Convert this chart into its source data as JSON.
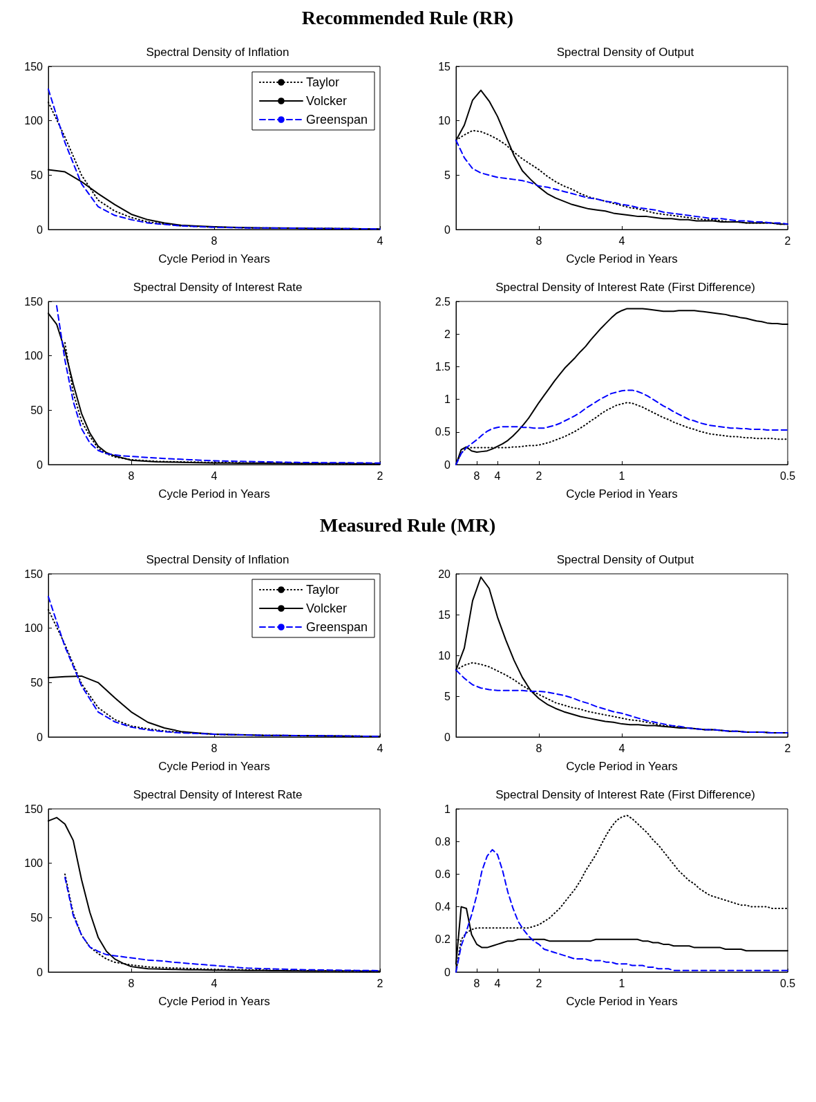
{
  "chart_data": [
    {
      "type": "line",
      "title": "Spectral Density of Inflation",
      "xlabel": "Cycle Period in Years",
      "annotations": [
        "Recommended Rule (RR)"
      ],
      "legend": "top right",
      "categories": [
        null,
        null,
        null,
        null,
        null,
        null,
        null,
        null,
        null,
        null,
        "8",
        null,
        null,
        null,
        null,
        null,
        null,
        null,
        null,
        null,
        "4"
      ],
      "ylim": [
        0,
        150
      ],
      "yticks": [
        0,
        50,
        100,
        150
      ],
      "series": [
        {
          "name": "Taylor",
          "color": "#000000",
          "line_style": "dotted",
          "values": [
            117,
            85,
            50,
            27,
            17,
            11,
            7,
            5,
            3.3,
            2.8,
            2.2,
            1.9,
            1.5,
            1.4,
            1.3,
            1.2,
            1,
            0.9,
            0.8,
            0.6,
            0.5
          ]
        },
        {
          "name": "Volcker",
          "color": "#000000",
          "line_style": "solid",
          "values": [
            55,
            53,
            44,
            33,
            23,
            14,
            9,
            6,
            4,
            3.2,
            2.5,
            2.1,
            1.7,
            1.5,
            1.4,
            1.2,
            1,
            0.9,
            0.8,
            0.6,
            0.5
          ]
        },
        {
          "name": "Greenspan",
          "color": "#0000ff",
          "line_style": "dashed",
          "values": [
            129,
            80,
            42,
            21,
            13,
            9,
            6,
            4.7,
            3.3,
            2.7,
            2,
            1.8,
            1.5,
            1.4,
            1.3,
            1.2,
            1,
            0.9,
            0.8,
            0.6,
            0.5
          ]
        }
      ]
    },
    {
      "type": "line",
      "title": "Spectral Density of Output",
      "xlabel": "Cycle Period in Years",
      "categories": [
        null,
        null,
        null,
        null,
        null,
        null,
        null,
        null,
        null,
        null,
        "8",
        null,
        null,
        null,
        null,
        null,
        null,
        null,
        null,
        null,
        "4",
        null,
        null,
        null,
        null,
        null,
        null,
        null,
        null,
        null,
        null,
        null,
        null,
        null,
        null,
        null,
        null,
        null,
        null,
        null,
        "2"
      ],
      "ylim": [
        0,
        15
      ],
      "yticks": [
        0,
        5,
        10,
        15
      ],
      "series": [
        {
          "color": "#000000",
          "line_style": "dotted",
          "values": [
            8.2,
            8.7,
            9.1,
            9.0,
            8.7,
            8.3,
            7.8,
            7.1,
            6.5,
            6.0,
            5.5,
            4.9,
            4.4,
            4.0,
            3.7,
            3.3,
            3.0,
            2.8,
            2.6,
            2.4,
            2.2,
            2.0,
            1.9,
            1.7,
            1.5,
            1.4,
            1.3,
            1.2,
            1.1,
            1.0,
            0.9,
            0.9,
            0.8,
            0.7,
            0.7,
            0.6,
            0.6,
            0.6,
            0.6,
            0.5,
            0.5
          ]
        },
        {
          "color": "#000000",
          "line_style": "solid",
          "values": [
            8.2,
            9.6,
            11.9,
            12.8,
            11.8,
            10.4,
            8.6,
            6.8,
            5.4,
            4.6,
            3.9,
            3.3,
            2.9,
            2.6,
            2.3,
            2.1,
            1.9,
            1.8,
            1.7,
            1.5,
            1.4,
            1.3,
            1.2,
            1.2,
            1.1,
            1.0,
            1.0,
            0.9,
            0.9,
            0.8,
            0.8,
            0.8,
            0.7,
            0.7,
            0.7,
            0.6,
            0.6,
            0.6,
            0.6,
            0.5,
            0.5
          ]
        },
        {
          "color": "#0000ff",
          "line_style": "dashed",
          "values": [
            8.2,
            6.6,
            5.6,
            5.2,
            5.0,
            4.8,
            4.7,
            4.6,
            4.5,
            4.3,
            4.0,
            3.9,
            3.7,
            3.5,
            3.3,
            3.1,
            2.9,
            2.8,
            2.6,
            2.5,
            2.3,
            2.2,
            2.0,
            1.9,
            1.8,
            1.6,
            1.5,
            1.4,
            1.3,
            1.2,
            1.1,
            1.0,
            1.0,
            0.9,
            0.8,
            0.8,
            0.7,
            0.7,
            0.6,
            0.6,
            0.5
          ]
        }
      ]
    },
    {
      "type": "line",
      "title": "Spectral Density of Interest Rate",
      "xlabel": "Cycle Period in Years",
      "categories": [
        null,
        null,
        null,
        null,
        null,
        null,
        null,
        null,
        null,
        null,
        "8",
        null,
        null,
        null,
        null,
        null,
        null,
        null,
        null,
        null,
        "4",
        null,
        null,
        null,
        null,
        null,
        null,
        null,
        null,
        null,
        null,
        null,
        null,
        null,
        null,
        null,
        null,
        null,
        null,
        null,
        "2"
      ],
      "ylim": [
        0,
        150
      ],
      "yticks": [
        0,
        50,
        100,
        150
      ],
      "series": [
        {
          "color": "#000000",
          "line_style": "dotted",
          "values": [
            null,
            null,
            112,
            66,
            40,
            26,
            15,
            10,
            7,
            5.7,
            4.5,
            4,
            3.5,
            3,
            2.8,
            2.7,
            2.5,
            2.4,
            2.3,
            2.1,
            2,
            1.9,
            1.8,
            1.7,
            1.6,
            1.5,
            1.5,
            1.4,
            1.3,
            1.2,
            1.2,
            1.1,
            1.1,
            1,
            1,
            1,
            0.9,
            0.9,
            0.9,
            0.8,
            0.8
          ]
        },
        {
          "color": "#000000",
          "line_style": "solid",
          "values": [
            139,
            129,
            105,
            74,
            47,
            29,
            17,
            11,
            8,
            6,
            4,
            3.5,
            3,
            2.5,
            2.4,
            2.2,
            2.1,
            1.9,
            1.8,
            1.6,
            1.5,
            1.4,
            1.4,
            1.3,
            1.3,
            1.2,
            1.2,
            1.1,
            1.1,
            1,
            1,
            1,
            1,
            0.9,
            0.9,
            0.9,
            0.9,
            0.8,
            0.8,
            0.8,
            0.8
          ]
        },
        {
          "color": "#0000ff",
          "line_style": "dashed",
          "values": [
            null,
            146,
            96,
            58,
            33,
            20,
            13,
            10,
            9,
            8,
            7.5,
            7,
            6.5,
            6,
            5.6,
            5.2,
            4.9,
            4.5,
            4.2,
            3.8,
            3.5,
            3.3,
            3.2,
            3,
            2.9,
            2.7,
            2.6,
            2.4,
            2.3,
            2.1,
            2,
            1.9,
            1.9,
            1.8,
            1.8,
            1.7,
            1.7,
            1.6,
            1.6,
            1.5,
            1.5
          ]
        }
      ]
    },
    {
      "type": "line",
      "title": "Spectral Density of Interest Rate (First Difference)",
      "xlabel": "Cycle Period in Years",
      "categories": [
        null,
        null,
        null,
        null,
        "8",
        null,
        null,
        null,
        "4",
        null,
        null,
        null,
        null,
        null,
        null,
        null,
        "2",
        null,
        null,
        null,
        null,
        null,
        null,
        null,
        null,
        null,
        null,
        null,
        null,
        null,
        null,
        null,
        "1",
        null,
        null,
        null,
        null,
        null,
        null,
        null,
        null,
        null,
        null,
        null,
        null,
        null,
        null,
        null,
        null,
        null,
        null,
        null,
        null,
        null,
        null,
        null,
        null,
        null,
        null,
        null,
        null,
        null,
        null,
        null,
        "0.5"
      ],
      "ylim": [
        0,
        2.5
      ],
      "yticks": [
        0,
        0.5,
        1,
        1.5,
        2,
        2.5
      ],
      "series": [
        {
          "color": "#000000",
          "line_style": "dotted",
          "values": [
            0,
            0.18,
            0.25,
            0.26,
            0.26,
            0.26,
            0.26,
            0.26,
            0.26,
            0.26,
            0.26,
            0.27,
            0.27,
            0.28,
            0.29,
            0.29,
            0.3,
            0.32,
            0.34,
            0.37,
            0.4,
            0.43,
            0.47,
            0.51,
            0.56,
            0.61,
            0.67,
            0.72,
            0.78,
            0.83,
            0.87,
            0.91,
            0.93,
            0.95,
            0.94,
            0.91,
            0.88,
            0.84,
            0.8,
            0.76,
            0.72,
            0.69,
            0.65,
            0.62,
            0.59,
            0.56,
            0.54,
            0.51,
            0.49,
            0.47,
            0.46,
            0.45,
            0.44,
            0.43,
            0.43,
            0.42,
            0.41,
            0.41,
            0.4,
            0.4,
            0.4,
            0.4,
            0.39,
            0.39,
            0.39
          ]
        },
        {
          "color": "#000000",
          "line_style": "solid",
          "values": [
            0,
            0.23,
            0.27,
            0.21,
            0.19,
            0.2,
            0.21,
            0.24,
            0.28,
            0.32,
            0.37,
            0.44,
            0.52,
            0.61,
            0.71,
            0.83,
            0.95,
            1.06,
            1.17,
            1.28,
            1.38,
            1.48,
            1.56,
            1.64,
            1.73,
            1.81,
            1.91,
            2.0,
            2.09,
            2.17,
            2.25,
            2.32,
            2.36,
            2.39,
            2.39,
            2.39,
            2.39,
            2.38,
            2.37,
            2.36,
            2.35,
            2.35,
            2.35,
            2.36,
            2.36,
            2.36,
            2.36,
            2.35,
            2.34,
            2.33,
            2.32,
            2.31,
            2.3,
            2.28,
            2.27,
            2.25,
            2.24,
            2.22,
            2.2,
            2.19,
            2.17,
            2.16,
            2.16,
            2.15,
            2.15
          ]
        },
        {
          "color": "#0000ff",
          "line_style": "dashed",
          "values": [
            0,
            0.17,
            0.26,
            0.32,
            0.38,
            0.45,
            0.51,
            0.55,
            0.57,
            0.58,
            0.58,
            0.58,
            0.58,
            0.57,
            0.57,
            0.56,
            0.56,
            0.56,
            0.58,
            0.6,
            0.63,
            0.67,
            0.71,
            0.75,
            0.8,
            0.86,
            0.91,
            0.96,
            1.01,
            1.05,
            1.09,
            1.11,
            1.13,
            1.14,
            1.14,
            1.12,
            1.09,
            1.05,
            1.0,
            0.95,
            0.9,
            0.86,
            0.81,
            0.77,
            0.73,
            0.69,
            0.67,
            0.64,
            0.62,
            0.6,
            0.59,
            0.58,
            0.57,
            0.56,
            0.56,
            0.55,
            0.55,
            0.54,
            0.54,
            0.54,
            0.53,
            0.53,
            0.53,
            0.53,
            0.53
          ]
        }
      ]
    },
    {
      "type": "line",
      "title": "Spectral Density of Inflation",
      "xlabel": "Cycle Period in Years",
      "annotations": [
        "Measured Rule (MR)"
      ],
      "legend": "top right",
      "categories": [
        null,
        null,
        null,
        null,
        null,
        null,
        null,
        null,
        null,
        null,
        "8",
        null,
        null,
        null,
        null,
        null,
        null,
        null,
        null,
        null,
        "4"
      ],
      "ylim": [
        0,
        150
      ],
      "yticks": [
        0,
        50,
        100,
        150
      ],
      "series": [
        {
          "name": "Taylor",
          "color": "#000000",
          "line_style": "dotted",
          "values": [
            117,
            85,
            49,
            27,
            16,
            10,
            7.5,
            5.5,
            4.2,
            3.5,
            2.5,
            2.1,
            1.9,
            1.5,
            1.4,
            1.2,
            1.1,
            1,
            0.8,
            0.7,
            0.5
          ]
        },
        {
          "name": "Volcker",
          "color": "#000000",
          "line_style": "solid",
          "values": [
            54.5,
            55.5,
            56,
            50,
            36,
            23,
            13.5,
            8.3,
            5,
            3.7,
            2.5,
            2.2,
            1.9,
            1.5,
            1.4,
            1.2,
            1.1,
            1,
            0.8,
            0.7,
            0.5
          ]
        },
        {
          "name": "Greenspan",
          "color": "#0000ff",
          "line_style": "dashed",
          "values": [
            129,
            83,
            47,
            23,
            14,
            9,
            6.5,
            4.8,
            3.8,
            3.2,
            2.5,
            2.1,
            1.8,
            1.5,
            1.4,
            1.3,
            1.2,
            1.1,
            0.9,
            0.7,
            0.5
          ]
        }
      ]
    },
    {
      "type": "line",
      "title": "Spectral Density of Output",
      "xlabel": "Cycle Period in Years",
      "categories": [
        null,
        null,
        null,
        null,
        null,
        null,
        null,
        null,
        null,
        null,
        "8",
        null,
        null,
        null,
        null,
        null,
        null,
        null,
        null,
        null,
        "4",
        null,
        null,
        null,
        null,
        null,
        null,
        null,
        null,
        null,
        null,
        null,
        null,
        null,
        null,
        null,
        null,
        null,
        null,
        null,
        "2"
      ],
      "ylim": [
        0,
        20
      ],
      "yticks": [
        0,
        5,
        10,
        15,
        20
      ],
      "series": [
        {
          "color": "#000000",
          "line_style": "dotted",
          "values": [
            8.2,
            8.8,
            9.1,
            8.9,
            8.6,
            8.1,
            7.6,
            7.0,
            6.3,
            5.7,
            5.2,
            4.7,
            4.2,
            3.9,
            3.6,
            3.4,
            3.1,
            2.9,
            2.7,
            2.5,
            2.3,
            2.1,
            2.0,
            1.8,
            1.6,
            1.4,
            1.3,
            1.2,
            1.1,
            1.0,
            0.9,
            0.9,
            0.8,
            0.7,
            0.7,
            0.6,
            0.6,
            0.6,
            0.5,
            0.5,
            0.5
          ]
        },
        {
          "color": "#000000",
          "line_style": "solid",
          "values": [
            8.2,
            10.9,
            16.7,
            19.6,
            18.2,
            14.7,
            11.9,
            9.4,
            7.3,
            5.7,
            4.7,
            4.0,
            3.5,
            3.1,
            2.8,
            2.5,
            2.3,
            2.1,
            1.9,
            1.8,
            1.6,
            1.5,
            1.5,
            1.4,
            1.4,
            1.3,
            1.2,
            1.1,
            1.1,
            1.0,
            0.9,
            0.9,
            0.8,
            0.7,
            0.7,
            0.6,
            0.6,
            0.6,
            0.5,
            0.5,
            0.5
          ]
        },
        {
          "color": "#0000ff",
          "line_style": "dashed",
          "values": [
            8.2,
            7.2,
            6.4,
            6.0,
            5.8,
            5.7,
            5.7,
            5.7,
            5.7,
            5.6,
            5.6,
            5.5,
            5.3,
            5.1,
            4.8,
            4.4,
            4.1,
            3.7,
            3.4,
            3.1,
            2.9,
            2.6,
            2.3,
            2.0,
            1.8,
            1.6,
            1.4,
            1.3,
            1.1,
            1.0,
            0.9,
            0.9,
            0.8,
            0.7,
            0.7,
            0.6,
            0.6,
            0.6,
            0.5,
            0.5,
            0.5
          ]
        }
      ]
    },
    {
      "type": "line",
      "title": "Spectral Density of Interest Rate",
      "xlabel": "Cycle Period in Years",
      "categories": [
        null,
        null,
        null,
        null,
        null,
        null,
        null,
        null,
        null,
        null,
        "8",
        null,
        null,
        null,
        null,
        null,
        null,
        null,
        null,
        null,
        "4",
        null,
        null,
        null,
        null,
        null,
        null,
        null,
        null,
        null,
        null,
        null,
        null,
        null,
        null,
        null,
        null,
        null,
        null,
        null,
        "2"
      ],
      "ylim": [
        0,
        150
      ],
      "yticks": [
        0,
        50,
        100,
        150
      ],
      "series": [
        {
          "color": "#000000",
          "line_style": "dotted",
          "values": [
            null,
            null,
            90,
            54,
            34,
            23,
            17,
            12,
            9,
            7.8,
            6.5,
            5.6,
            4.7,
            4.3,
            4,
            3.7,
            3.5,
            3.2,
            3,
            2.7,
            2.5,
            2.4,
            2.2,
            2.1,
            2,
            1.9,
            1.8,
            1.6,
            1.5,
            1.4,
            1.3,
            1.2,
            1.2,
            1.1,
            1.1,
            1,
            1,
            0.9,
            0.9,
            0.8,
            0.8
          ]
        },
        {
          "color": "#000000",
          "line_style": "solid",
          "values": [
            139,
            142,
            136,
            121,
            85,
            55,
            32,
            19,
            12,
            8,
            5,
            4,
            3,
            2.8,
            2.6,
            2.4,
            2.3,
            2.1,
            2,
            1.9,
            1.8,
            1.7,
            1.6,
            1.6,
            1.5,
            1.4,
            1.4,
            1.3,
            1.2,
            1.1,
            1.1,
            1,
            1,
            1,
            0.9,
            0.9,
            0.9,
            0.9,
            0.8,
            0.8,
            0.8
          ]
        },
        {
          "color": "#0000ff",
          "line_style": "dashed",
          "values": [
            null,
            null,
            87,
            52,
            34,
            23,
            19,
            16,
            15,
            14,
            13,
            12,
            11,
            10.5,
            10,
            9,
            8.5,
            7.8,
            7.2,
            6.6,
            6,
            5.4,
            4.8,
            4.1,
            3.6,
            3.3,
            3.1,
            2.9,
            2.7,
            2.5,
            2.3,
            2.1,
            2,
            1.9,
            1.8,
            1.7,
            1.6,
            1.5,
            1.4,
            1.4,
            1.3
          ]
        }
      ]
    },
    {
      "type": "line",
      "title": "Spectral Density of Interest Rate (First Difference)",
      "xlabel": "Cycle Period in Years",
      "categories": [
        null,
        null,
        null,
        null,
        "8",
        null,
        null,
        null,
        "4",
        null,
        null,
        null,
        null,
        null,
        null,
        null,
        "2",
        null,
        null,
        null,
        null,
        null,
        null,
        null,
        null,
        null,
        null,
        null,
        null,
        null,
        null,
        null,
        "1",
        null,
        null,
        null,
        null,
        null,
        null,
        null,
        null,
        null,
        null,
        null,
        null,
        null,
        null,
        null,
        null,
        null,
        null,
        null,
        null,
        null,
        null,
        null,
        null,
        null,
        null,
        null,
        null,
        null,
        null,
        null,
        "0.5"
      ],
      "ylim": [
        0,
        1
      ],
      "yticks": [
        0,
        0.2,
        0.4,
        0.6,
        0.8,
        1
      ],
      "series": [
        {
          "color": "#000000",
          "line_style": "dotted",
          "values": [
            0,
            0.2,
            0.24,
            0.26,
            0.27,
            0.27,
            0.27,
            0.27,
            0.27,
            0.27,
            0.27,
            0.27,
            0.27,
            0.27,
            0.27,
            0.28,
            0.29,
            0.31,
            0.33,
            0.36,
            0.39,
            0.43,
            0.47,
            0.51,
            0.56,
            0.62,
            0.67,
            0.72,
            0.78,
            0.84,
            0.89,
            0.93,
            0.95,
            0.96,
            0.94,
            0.91,
            0.88,
            0.85,
            0.81,
            0.78,
            0.74,
            0.7,
            0.66,
            0.62,
            0.59,
            0.56,
            0.54,
            0.51,
            0.49,
            0.47,
            0.46,
            0.45,
            0.44,
            0.43,
            0.42,
            0.41,
            0.41,
            0.4,
            0.4,
            0.4,
            0.4,
            0.39,
            0.39,
            0.39,
            0.39
          ]
        },
        {
          "color": "#000000",
          "line_style": "solid",
          "values": [
            0.05,
            0.4,
            0.39,
            0.23,
            0.17,
            0.15,
            0.15,
            0.16,
            0.17,
            0.18,
            0.19,
            0.19,
            0.2,
            0.2,
            0.2,
            0.2,
            0.2,
            0.2,
            0.19,
            0.19,
            0.19,
            0.19,
            0.19,
            0.19,
            0.19,
            0.19,
            0.19,
            0.2,
            0.2,
            0.2,
            0.2,
            0.2,
            0.2,
            0.2,
            0.2,
            0.2,
            0.19,
            0.19,
            0.18,
            0.18,
            0.17,
            0.17,
            0.16,
            0.16,
            0.16,
            0.16,
            0.15,
            0.15,
            0.15,
            0.15,
            0.15,
            0.15,
            0.14,
            0.14,
            0.14,
            0.14,
            0.13,
            0.13,
            0.13,
            0.13,
            0.13,
            0.13,
            0.13,
            0.13,
            0.13
          ]
        },
        {
          "color": "#0000ff",
          "line_style": "dashed",
          "values": [
            0,
            0.16,
            0.25,
            0.35,
            0.47,
            0.62,
            0.71,
            0.75,
            0.72,
            0.62,
            0.49,
            0.39,
            0.31,
            0.26,
            0.22,
            0.19,
            0.17,
            0.14,
            0.13,
            0.12,
            0.11,
            0.1,
            0.09,
            0.08,
            0.08,
            0.08,
            0.07,
            0.07,
            0.07,
            0.06,
            0.06,
            0.05,
            0.05,
            0.05,
            0.04,
            0.04,
            0.04,
            0.03,
            0.03,
            0.02,
            0.02,
            0.02,
            0.01,
            0.01,
            0.01,
            0.01,
            0.01,
            0.01,
            0.01,
            0.01,
            0.01,
            0.01,
            0.01,
            0.01,
            0.01,
            0.01,
            0.01,
            0.01,
            0.01,
            0.01,
            0.01,
            0.01,
            0.01,
            0.01,
            0.01
          ]
        }
      ]
    }
  ]
}
